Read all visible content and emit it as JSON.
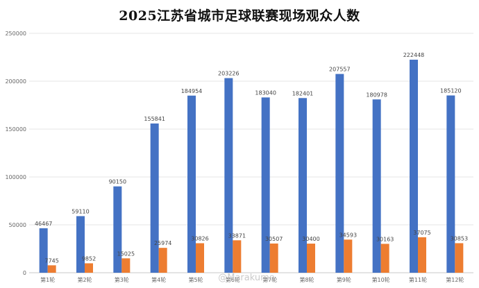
{
  "chart_data": {
    "type": "bar",
    "title": "2025江苏省城市足球联赛现场观众人数",
    "xlabel": "",
    "ylabel": "",
    "ylim": [
      0,
      250000
    ],
    "yticks": [
      0,
      50000,
      100000,
      150000,
      200000,
      250000
    ],
    "ytick_labels": [
      "0",
      "50000",
      "100000",
      "150000",
      "200000",
      "250000"
    ],
    "grid": "horizontal",
    "legend": "none",
    "categories": [
      "第1轮",
      "第2轮",
      "第3轮",
      "第4轮",
      "第5轮",
      "第6轮",
      "第7轮",
      "第8轮",
      "第9轮",
      "第10轮",
      "第11轮",
      "第12轮"
    ],
    "series": [
      {
        "color": "#4472c4",
        "values": [
          46467,
          59110,
          90150,
          155841,
          184954,
          203226,
          183040,
          182401,
          207557,
          180978,
          222448,
          185120
        ]
      },
      {
        "color": "#ed7d31",
        "values": [
          7745,
          9852,
          15025,
          25974,
          30826,
          33871,
          30507,
          30400,
          34593,
          30163,
          37075,
          30853
        ]
      }
    ]
  },
  "watermark": "@Marakumo"
}
